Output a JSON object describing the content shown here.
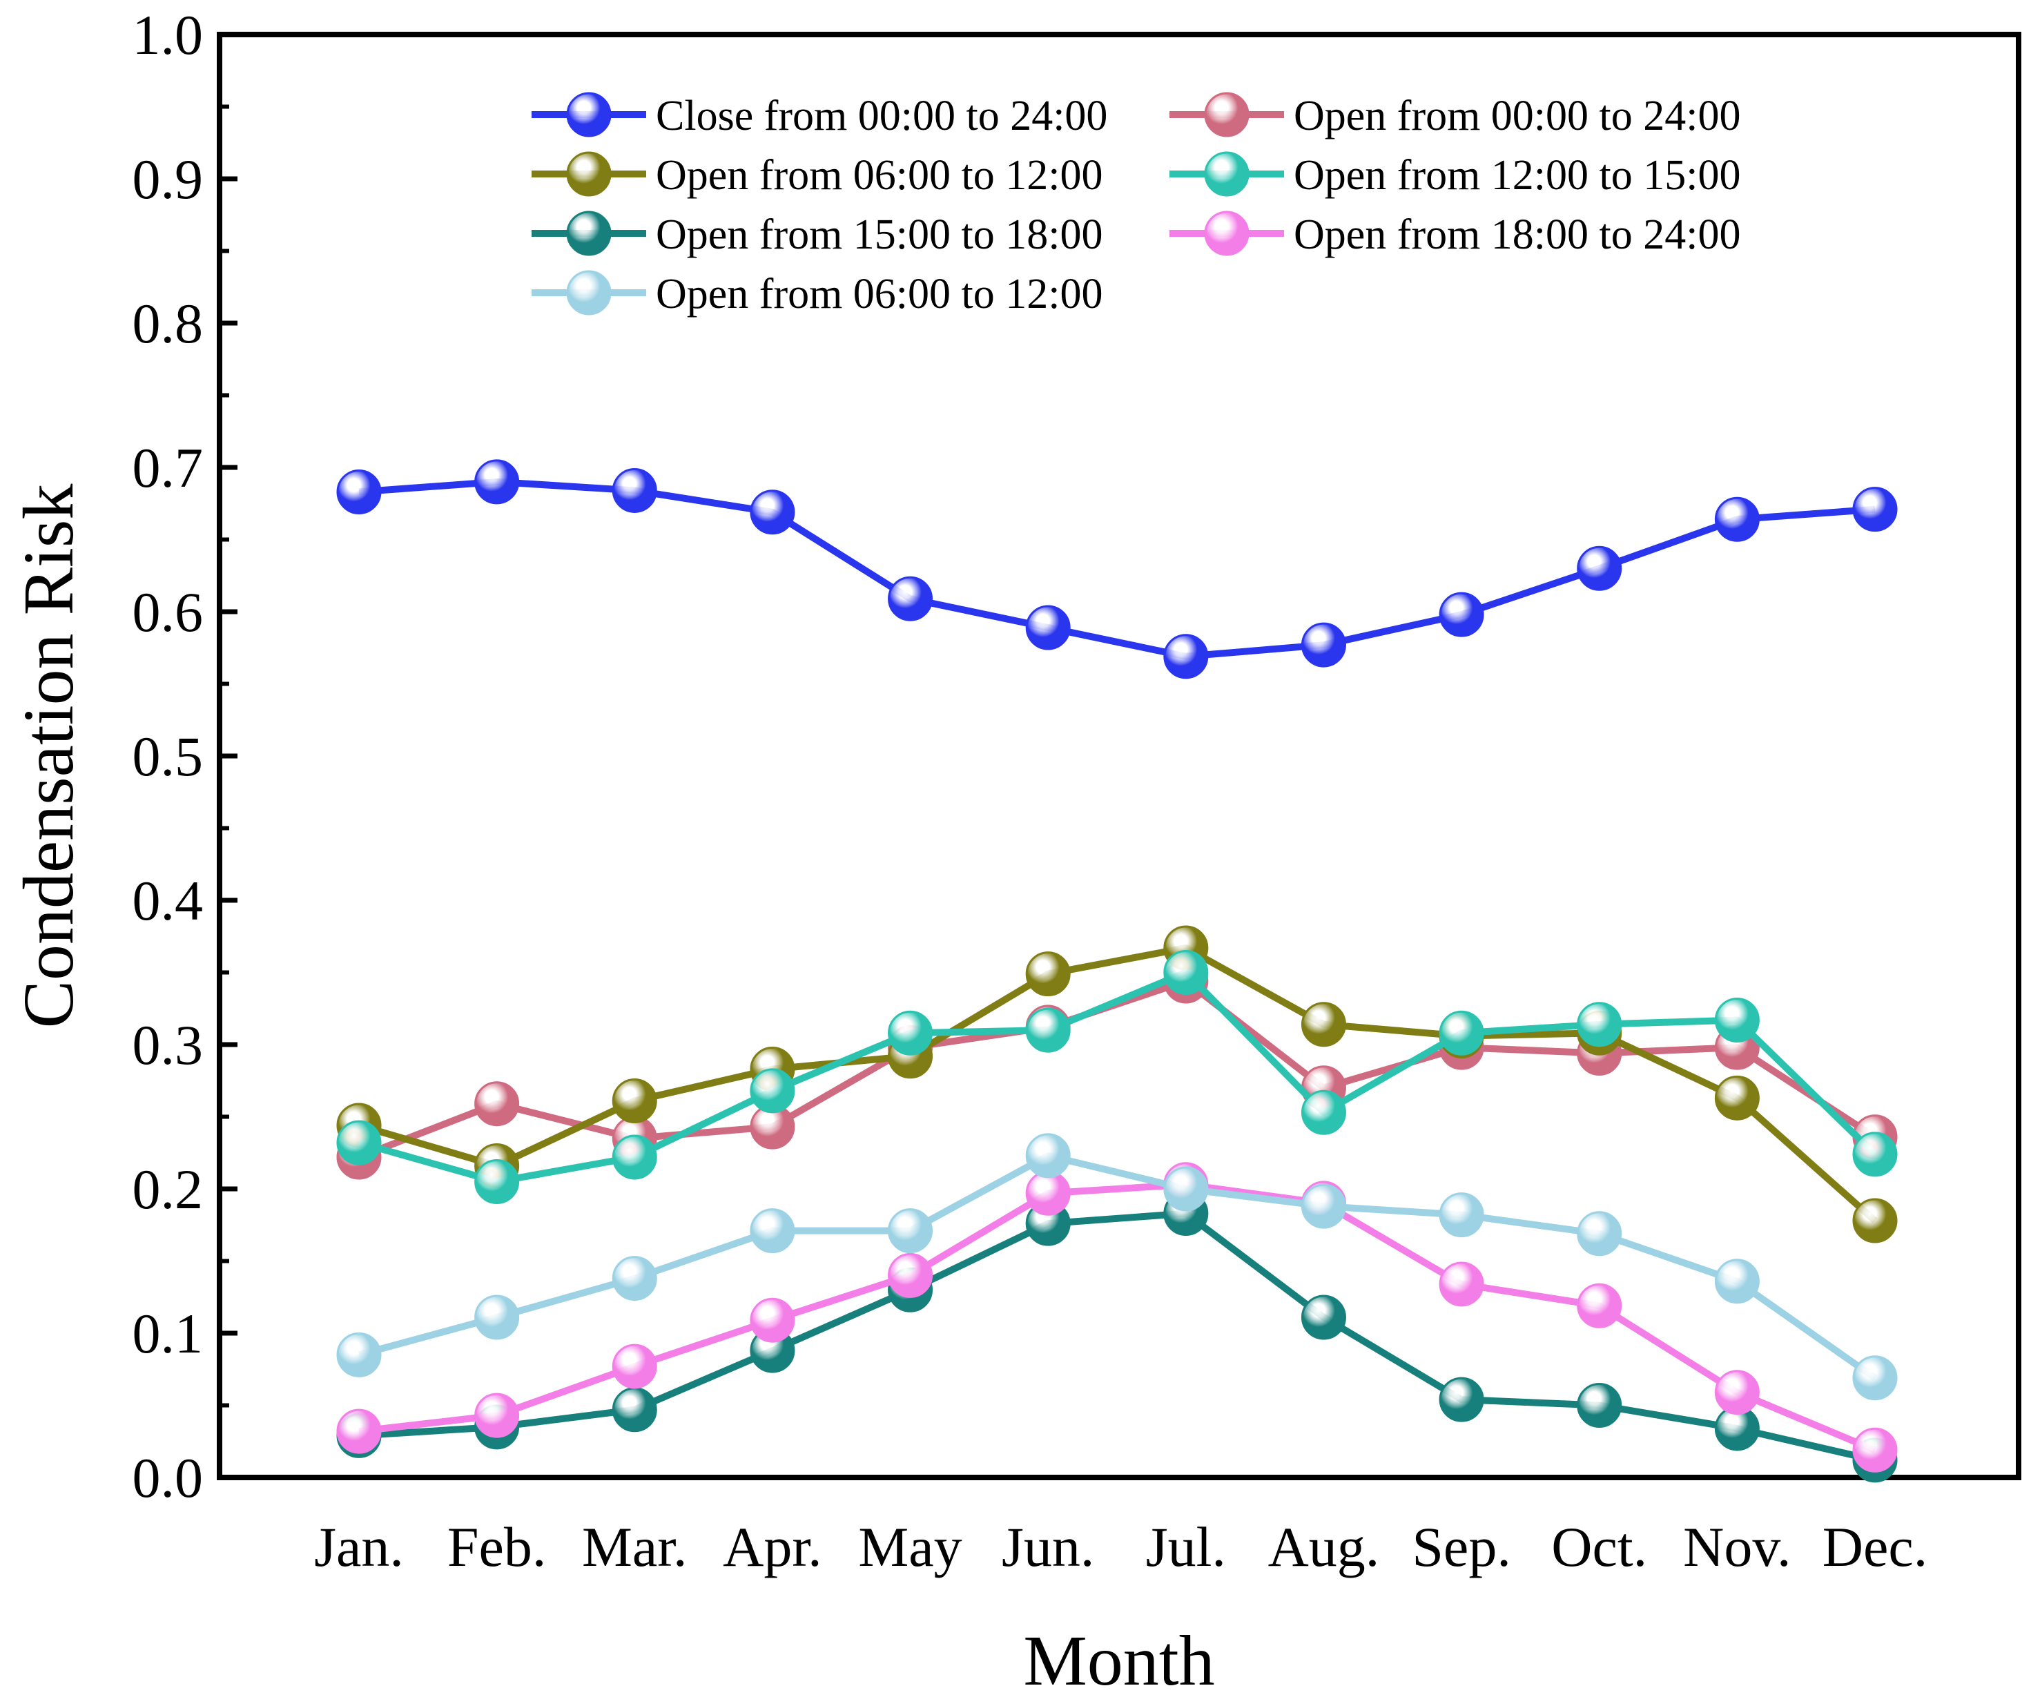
{
  "chart_data": {
    "type": "line",
    "title": "",
    "xlabel": "Month",
    "ylabel": "Condensation Risk",
    "ylim": [
      0.0,
      1.0
    ],
    "yticks": [
      "0.0",
      "0.1",
      "0.2",
      "0.3",
      "0.4",
      "0.5",
      "0.6",
      "0.7",
      "0.8",
      "0.9",
      "1.0"
    ],
    "categories": [
      "Jan.",
      "Feb.",
      "Mar.",
      "Apr.",
      "May",
      "Jun.",
      "Jul.",
      "Aug.",
      "Sep.",
      "Oct.",
      "Nov.",
      "Dec."
    ],
    "grid": false,
    "legend_position": "top",
    "series": [
      {
        "name": "Close from 00:00 to 24:00",
        "color": "#2a35ee",
        "values": [
          0.683,
          0.69,
          0.684,
          0.669,
          0.609,
          0.589,
          0.569,
          0.577,
          0.598,
          0.63,
          0.664,
          0.671
        ]
      },
      {
        "name": "Open from 00:00 to 24:00",
        "color": "#cf6b80",
        "values": [
          0.222,
          0.259,
          0.235,
          0.243,
          0.298,
          0.312,
          0.344,
          0.27,
          0.298,
          0.294,
          0.298,
          0.236
        ]
      },
      {
        "name": "Open from 06:00 to 12:00",
        "color": "#7f7d14",
        "values": [
          0.244,
          0.216,
          0.261,
          0.283,
          0.292,
          0.349,
          0.367,
          0.314,
          0.306,
          0.308,
          0.263,
          0.178
        ]
      },
      {
        "name": "Open from 12:00 to 15:00",
        "color": "#2bc3b0",
        "values": [
          0.232,
          0.205,
          0.222,
          0.268,
          0.308,
          0.31,
          0.35,
          0.253,
          0.308,
          0.314,
          0.317,
          0.224
        ]
      },
      {
        "name": "Open from 15:00 to 18:00",
        "color": "#17807c",
        "values": [
          0.029,
          0.035,
          0.047,
          0.088,
          0.13,
          0.176,
          0.183,
          0.111,
          0.054,
          0.05,
          0.034,
          0.012
        ]
      },
      {
        "name": "Open from 18:00 to 24:00",
        "color": "#f47ee8",
        "values": [
          0.032,
          0.043,
          0.077,
          0.109,
          0.14,
          0.197,
          0.203,
          0.19,
          0.134,
          0.119,
          0.059,
          0.019
        ]
      },
      {
        "name": "Open from 06:00 to 12:00",
        "color": "#9cd2e4",
        "values": [
          0.085,
          0.111,
          0.138,
          0.171,
          0.171,
          0.223,
          0.2,
          0.188,
          0.182,
          0.169,
          0.136,
          0.069
        ]
      }
    ]
  }
}
